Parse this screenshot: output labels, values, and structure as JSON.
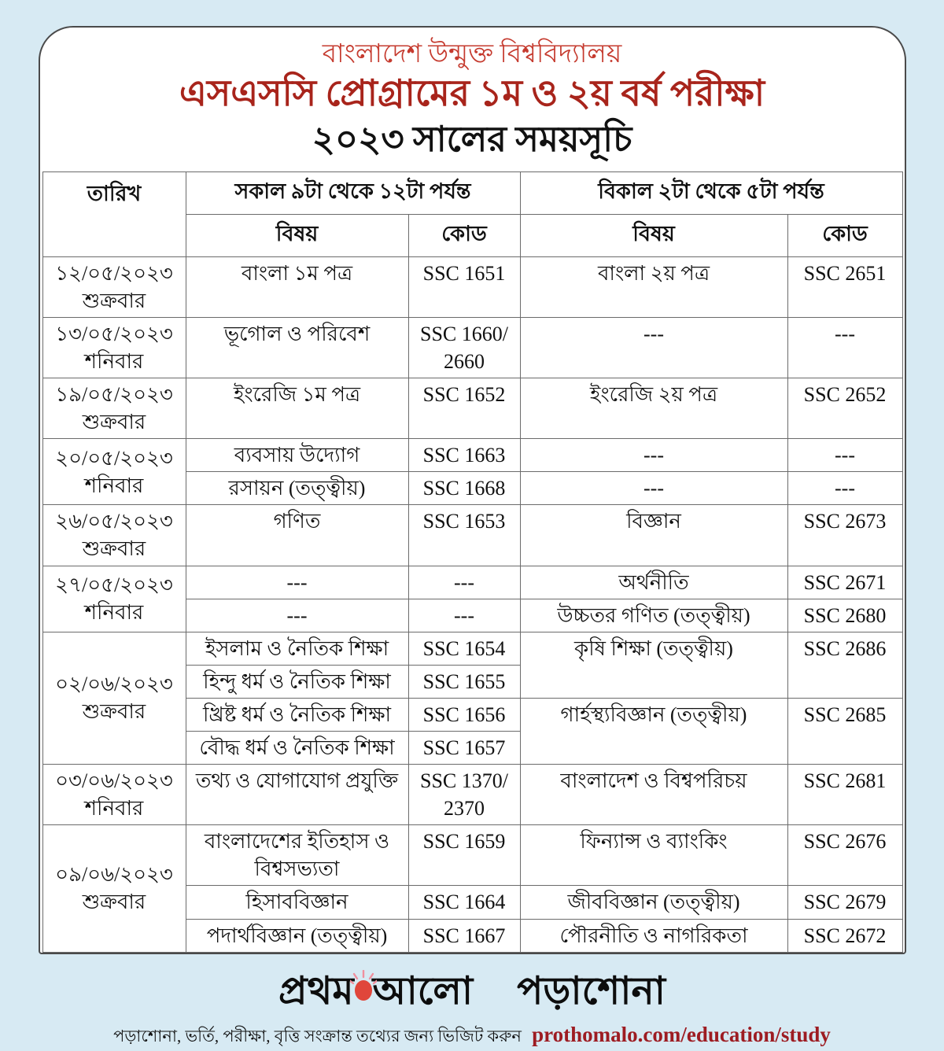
{
  "header": {
    "university": "বাংলাদেশ উন্মুক্ত বিশ্ববিদ্যালয়",
    "exam_title": "এসএসসি প্রোগ্রামের ১ম ও ২য় বর্ষ পরীক্ষা",
    "year_title": "২০২৩ সালের সময়সূচি"
  },
  "colors": {
    "background": "#d7eaf3",
    "university_red": "#c53a2e",
    "exam_title_maroon": "#a8241b",
    "url_dark_red": "#9d1c22",
    "sun_red": "#e0463b",
    "sun_rays_pink": "#f0909e"
  },
  "table": {
    "headers": {
      "date": "তারিখ",
      "morning_session": "সকাল ৯টা থেকে ১২টা পর্যন্ত",
      "afternoon_session": "বিকাল ২টা থেকে ৫টা পর্যন্ত",
      "subject": "বিষয়",
      "code": "কোড"
    },
    "rows": [
      {
        "cells": [
          {
            "text": "১২/০৫/২০২৩\nশুক্রবার",
            "type": "date"
          },
          {
            "text": "বাংলা ১ম পত্র",
            "type": "subject"
          },
          {
            "text": "SSC 1651",
            "type": "code"
          },
          {
            "text": "বাংলা ২য় পত্র",
            "type": "subject"
          },
          {
            "text": "SSC 2651",
            "type": "code"
          }
        ]
      },
      {
        "cells": [
          {
            "text": "১৩/০৫/২০২৩\nশনিবার",
            "type": "date"
          },
          {
            "text": "ভূগোল ও পরিবেশ",
            "type": "subject"
          },
          {
            "text": "SSC 1660/\n2660",
            "type": "code"
          },
          {
            "text": "---",
            "type": "subject"
          },
          {
            "text": "---",
            "type": "code"
          }
        ]
      },
      {
        "cells": [
          {
            "text": "১৯/০৫/২০২৩\nশুক্রবার",
            "type": "date"
          },
          {
            "text": "ইংরেজি ১ম পত্র",
            "type": "subject"
          },
          {
            "text": "SSC 1652",
            "type": "code"
          },
          {
            "text": "ইংরেজি ২য় পত্র",
            "type": "subject"
          },
          {
            "text": "SSC 2652",
            "type": "code"
          }
        ]
      },
      {
        "cells": [
          {
            "text": "২০/০৫/২০২৩\nশনিবার",
            "type": "date",
            "rowspan": 2
          },
          {
            "text": "ব্যবসায় উদ্যোগ",
            "type": "subject"
          },
          {
            "text": "SSC 1663",
            "type": "code"
          },
          {
            "text": "---",
            "type": "subject"
          },
          {
            "text": "---",
            "type": "code"
          }
        ]
      },
      {
        "cells": [
          {
            "text": "রসায়ন (তত্ত্বীয়)",
            "type": "subject"
          },
          {
            "text": "SSC 1668",
            "type": "code"
          },
          {
            "text": "---",
            "type": "subject"
          },
          {
            "text": "---",
            "type": "code"
          }
        ]
      },
      {
        "cells": [
          {
            "text": "২৬/০৫/২০২৩\nশুক্রবার",
            "type": "date"
          },
          {
            "text": "গণিত",
            "type": "subject"
          },
          {
            "text": "SSC 1653",
            "type": "code"
          },
          {
            "text": "বিজ্ঞান",
            "type": "subject"
          },
          {
            "text": "SSC 2673",
            "type": "code"
          }
        ]
      },
      {
        "cells": [
          {
            "text": "২৭/০৫/২০২৩\nশনিবার",
            "type": "date",
            "rowspan": 2
          },
          {
            "text": "---",
            "type": "subject"
          },
          {
            "text": "---",
            "type": "code"
          },
          {
            "text": "অর্থনীতি",
            "type": "subject"
          },
          {
            "text": "SSC 2671",
            "type": "code"
          }
        ]
      },
      {
        "cells": [
          {
            "text": "---",
            "type": "subject"
          },
          {
            "text": "---",
            "type": "code"
          },
          {
            "text": "উচ্চতর গণিত (তত্ত্বীয়)",
            "type": "subject"
          },
          {
            "text": "SSC 2680",
            "type": "code"
          }
        ]
      },
      {
        "cells": [
          {
            "text": "০২/০৬/২০২৩\nশুক্রবার",
            "type": "date",
            "rowspan": 4
          },
          {
            "text": "ইসলাম ও নৈতিক শিক্ষা",
            "type": "subject"
          },
          {
            "text": "SSC 1654",
            "type": "code"
          },
          {
            "text": "কৃষি শিক্ষা (তত্ত্বীয়)",
            "type": "subject",
            "rowspan": 2
          },
          {
            "text": "SSC 2686",
            "type": "code",
            "rowspan": 2
          }
        ]
      },
      {
        "cells": [
          {
            "text": "হিন্দু ধর্ম ও নৈতিক শিক্ষা",
            "type": "subject"
          },
          {
            "text": "SSC 1655",
            "type": "code"
          }
        ]
      },
      {
        "cells": [
          {
            "text": "খ্রিষ্ট ধর্ম ও নৈতিক শিক্ষা",
            "type": "subject"
          },
          {
            "text": "SSC 1656",
            "type": "code"
          },
          {
            "text": "গার্হস্থ্যবিজ্ঞান (তত্ত্বীয়)",
            "type": "subject",
            "rowspan": 2
          },
          {
            "text": "SSC 2685",
            "type": "code",
            "rowspan": 2
          }
        ]
      },
      {
        "cells": [
          {
            "text": "বৌদ্ধ ধর্ম ও নৈতিক শিক্ষা",
            "type": "subject"
          },
          {
            "text": "SSC 1657",
            "type": "code"
          }
        ]
      },
      {
        "cells": [
          {
            "text": "০৩/০৬/২০২৩\nশনিবার",
            "type": "date"
          },
          {
            "text": "তথ্য ও যোগাযোগ প্রযুক্তি",
            "type": "subject"
          },
          {
            "text": "SSC 1370/\n2370",
            "type": "code"
          },
          {
            "text": "বাংলাদেশ ও বিশ্বপরিচয়",
            "type": "subject"
          },
          {
            "text": "SSC 2681",
            "type": "code"
          }
        ]
      },
      {
        "cells": [
          {
            "text": "০৯/০৬/২০২৩\nশুক্রবার",
            "type": "date",
            "rowspan": 3
          },
          {
            "text": "বাংলাদেশের ইতিহাস ও বিশ্বসভ্যতা",
            "type": "subject"
          },
          {
            "text": "SSC 1659",
            "type": "code"
          },
          {
            "text": "ফিন্যান্স ও ব্যাংকিং",
            "type": "subject"
          },
          {
            "text": "SSC 2676",
            "type": "code"
          }
        ]
      },
      {
        "cells": [
          {
            "text": "হিসাববিজ্ঞান",
            "type": "subject"
          },
          {
            "text": "SSC 1664",
            "type": "code"
          },
          {
            "text": "জীববিজ্ঞান (তত্ত্বীয়)",
            "type": "subject"
          },
          {
            "text": "SSC 2679",
            "type": "code"
          }
        ]
      },
      {
        "cells": [
          {
            "text": "পদার্থবিজ্ঞান (তত্ত্বীয়)",
            "type": "subject"
          },
          {
            "text": "SSC 1667",
            "type": "code"
          },
          {
            "text": "পৌরনীতি ও নাগরিকতা",
            "type": "subject"
          },
          {
            "text": "SSC 2672",
            "type": "code"
          }
        ]
      }
    ]
  },
  "footer": {
    "logo_word1": "প্রথম",
    "logo_word2": "আলো",
    "logo_word3": "পড়াশোনা",
    "note": "পড়াশোনা, ভর্তি, পরীক্ষা, বৃত্তি সংক্রান্ত তথ্যের জন্য ভিজিট করুন",
    "url": "prothomalo.com/education/study"
  }
}
